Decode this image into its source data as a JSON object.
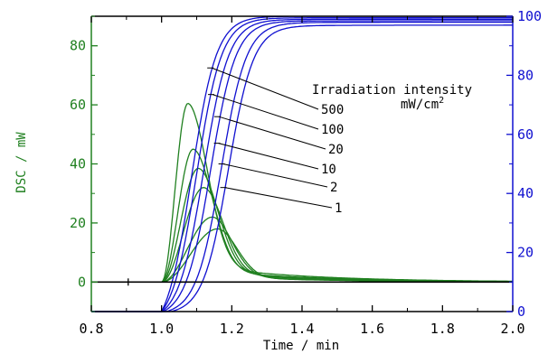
{
  "chart_data": {
    "type": "line",
    "title": "",
    "xlabel": "Time / min",
    "ylabel_left": "DSC / mW",
    "ylabel_right": "",
    "xlim": [
      0.8,
      2.0
    ],
    "ylim_left": [
      -10,
      90
    ],
    "ylim_right": [
      0,
      100
    ],
    "x_ticks": [
      "0.8",
      "1.0",
      "1.2",
      "1.4",
      "1.6",
      "1.8",
      "2.0"
    ],
    "y_left_ticks": [
      "0",
      "20",
      "40",
      "60",
      "80"
    ],
    "y_right_ticks": [
      "0",
      "20",
      "40",
      "60",
      "80",
      "100"
    ],
    "grid": false,
    "legend_title": "Irradiation intensity",
    "legend_unit": "mW/cm",
    "legend_unit_sup": "2",
    "colors": {
      "dsc": "#208020",
      "conversion": "#1010d0",
      "axis_left": "#208020",
      "axis_right": "#1010d0",
      "baseline": "#000000",
      "annotation": "#000000"
    },
    "series": [
      {
        "name": "500",
        "dsc_peak_x": 1.075,
        "dsc_peak_y": 60.5,
        "conv_half_x": 1.085,
        "conv_final": 100,
        "marker_x": 1.143,
        "marker_y": 82.5
      },
      {
        "name": "100",
        "dsc_peak_x": 1.09,
        "dsc_peak_y": 45,
        "conv_half_x": 1.1,
        "conv_final": 99.5,
        "marker_x": 1.145,
        "marker_y": 73.5
      },
      {
        "name": "20",
        "dsc_peak_x": 1.105,
        "dsc_peak_y": 38.5,
        "conv_half_x": 1.12,
        "conv_final": 99,
        "marker_x": 1.163,
        "marker_y": 66
      },
      {
        "name": "10",
        "dsc_peak_x": 1.12,
        "dsc_peak_y": 32,
        "conv_half_x": 1.14,
        "conv_final": 98.5,
        "marker_x": 1.162,
        "marker_y": 57
      },
      {
        "name": "2",
        "dsc_peak_x": 1.145,
        "dsc_peak_y": 22,
        "conv_half_x": 1.17,
        "conv_final": 98,
        "marker_x": 1.175,
        "marker_y": 50
      },
      {
        "name": "1",
        "dsc_peak_x": 1.16,
        "dsc_peak_y": 18,
        "conv_half_x": 1.19,
        "conv_final": 97,
        "marker_x": 1.18,
        "marker_y": 42
      }
    ],
    "baseline_marker_x": 0.905,
    "baseline_marker_y": 0
  }
}
